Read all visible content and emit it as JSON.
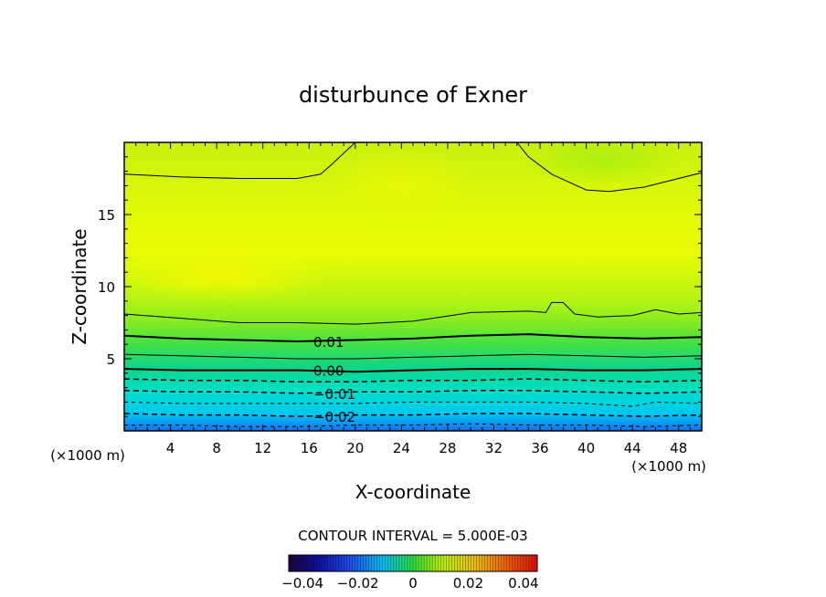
{
  "chart_data": {
    "type": "heatmap",
    "title": "disturbunce of Exner",
    "xlabel": "X-coordinate",
    "ylabel": "Z-coordinate",
    "x_unit_left": "(×1000 m)",
    "x_unit_right": "(×1000 m)",
    "xlim": [
      0,
      50
    ],
    "ylim": [
      0,
      20
    ],
    "x_ticks": [
      4,
      8,
      12,
      16,
      20,
      24,
      28,
      32,
      36,
      40,
      44,
      48
    ],
    "y_ticks": [
      5,
      10,
      15
    ],
    "contour_interval_text": "CONTOUR INTERVAL = 5.000E-03",
    "colorbar": {
      "range": [
        -0.045,
        0.045
      ],
      "tick_values": [
        -0.04,
        -0.02,
        0,
        0.02,
        0.04
      ],
      "tick_labels": [
        "−0.04",
        "−0.02",
        "0",
        "0.02",
        "0.04"
      ]
    },
    "contour_labels": [
      {
        "text": "0.01",
        "x": 17.7,
        "z": 6.2
      },
      {
        "text": "0.00",
        "x": 17.7,
        "z": 4.2
      },
      {
        "text": "−0.01",
        "x": 18.2,
        "z": 2.6
      },
      {
        "text": "−0.02",
        "x": 18.2,
        "z": 1.0
      }
    ],
    "contours": [
      {
        "level": 0.015,
        "style": "thin",
        "points": [
          [
            0,
            17.8
          ],
          [
            5,
            17.6
          ],
          [
            10,
            17.5
          ],
          [
            15,
            17.5
          ],
          [
            17,
            17.8
          ],
          [
            18,
            18.5
          ],
          [
            20,
            20.0
          ]
        ]
      },
      {
        "level": 0.015,
        "style": "thin",
        "points": [
          [
            34,
            20.0
          ],
          [
            35,
            19.0
          ],
          [
            37,
            17.8
          ],
          [
            40,
            16.7
          ],
          [
            42,
            16.6
          ],
          [
            45,
            16.9
          ],
          [
            48,
            17.5
          ],
          [
            50,
            17.9
          ]
        ]
      },
      {
        "level": 0.01,
        "style": "thin",
        "points": [
          [
            0,
            8.1
          ],
          [
            5,
            7.8
          ],
          [
            10,
            7.5
          ],
          [
            15,
            7.5
          ],
          [
            20,
            7.4
          ],
          [
            25,
            7.6
          ],
          [
            30,
            8.2
          ],
          [
            35,
            8.3
          ],
          [
            36.5,
            8.2
          ],
          [
            37,
            8.9
          ],
          [
            38,
            8.9
          ],
          [
            39,
            8.1
          ],
          [
            41,
            7.9
          ],
          [
            44,
            8.0
          ],
          [
            46,
            8.4
          ],
          [
            48,
            8.1
          ],
          [
            50,
            8.2
          ]
        ]
      },
      {
        "level": 0.01,
        "style": "thick",
        "points": [
          [
            0,
            6.6
          ],
          [
            5,
            6.4
          ],
          [
            10,
            6.3
          ],
          [
            15,
            6.2
          ],
          [
            20,
            6.3
          ],
          [
            25,
            6.4
          ],
          [
            30,
            6.6
          ],
          [
            35,
            6.7
          ],
          [
            40,
            6.5
          ],
          [
            45,
            6.4
          ],
          [
            50,
            6.5
          ]
        ]
      },
      {
        "level": 0.005,
        "style": "thin",
        "points": [
          [
            0,
            5.3
          ],
          [
            5,
            5.2
          ],
          [
            10,
            5.1
          ],
          [
            15,
            5.0
          ],
          [
            20,
            5.0
          ],
          [
            25,
            5.1
          ],
          [
            30,
            5.2
          ],
          [
            35,
            5.3
          ],
          [
            40,
            5.2
          ],
          [
            45,
            5.1
          ],
          [
            50,
            5.2
          ]
        ]
      },
      {
        "level": 0.0,
        "style": "thick",
        "points": [
          [
            0,
            4.3
          ],
          [
            5,
            4.2
          ],
          [
            10,
            4.2
          ],
          [
            15,
            4.2
          ],
          [
            20,
            4.1
          ],
          [
            25,
            4.2
          ],
          [
            30,
            4.3
          ],
          [
            35,
            4.3
          ],
          [
            40,
            4.2
          ],
          [
            45,
            4.2
          ],
          [
            50,
            4.3
          ]
        ]
      },
      {
        "level": -0.005,
        "style": "dashed",
        "points": [
          [
            0,
            3.6
          ],
          [
            5,
            3.5
          ],
          [
            10,
            3.5
          ],
          [
            15,
            3.4
          ],
          [
            20,
            3.4
          ],
          [
            25,
            3.5
          ],
          [
            30,
            3.5
          ],
          [
            35,
            3.6
          ],
          [
            40,
            3.5
          ],
          [
            45,
            3.4
          ],
          [
            50,
            3.5
          ]
        ]
      },
      {
        "level": -0.01,
        "style": "dashed",
        "points": [
          [
            0,
            2.8
          ],
          [
            5,
            2.7
          ],
          [
            10,
            2.7
          ],
          [
            15,
            2.6
          ],
          [
            20,
            2.7
          ],
          [
            25,
            2.7
          ],
          [
            30,
            2.8
          ],
          [
            35,
            2.8
          ],
          [
            40,
            2.7
          ],
          [
            45,
            2.6
          ],
          [
            50,
            2.7
          ]
        ]
      },
      {
        "level": -0.015,
        "style": "dashed-thin",
        "points": [
          [
            0,
            2.0
          ],
          [
            5,
            1.9
          ],
          [
            10,
            1.9
          ],
          [
            15,
            1.9
          ],
          [
            20,
            1.9
          ],
          [
            25,
            2.0
          ],
          [
            30,
            2.0
          ],
          [
            35,
            2.0
          ],
          [
            40,
            1.9
          ],
          [
            44,
            1.7
          ],
          [
            46,
            2.0
          ],
          [
            50,
            1.9
          ]
        ]
      },
      {
        "level": -0.02,
        "style": "dashed",
        "points": [
          [
            0,
            1.2
          ],
          [
            5,
            1.1
          ],
          [
            10,
            1.1
          ],
          [
            15,
            1.0
          ],
          [
            20,
            1.1
          ],
          [
            25,
            1.1
          ],
          [
            30,
            1.2
          ],
          [
            35,
            1.2
          ],
          [
            40,
            1.1
          ],
          [
            45,
            1.0
          ],
          [
            50,
            1.1
          ]
        ]
      },
      {
        "level": -0.025,
        "style": "dashed-thin",
        "points": [
          [
            0,
            0.4
          ],
          [
            5,
            0.4
          ],
          [
            10,
            0.3
          ],
          [
            15,
            0.3
          ],
          [
            20,
            0.4
          ],
          [
            25,
            0.4
          ],
          [
            30,
            0.5
          ],
          [
            35,
            0.4
          ],
          [
            40,
            0.4
          ],
          [
            45,
            0.3
          ],
          [
            50,
            0.4
          ]
        ]
      }
    ]
  }
}
